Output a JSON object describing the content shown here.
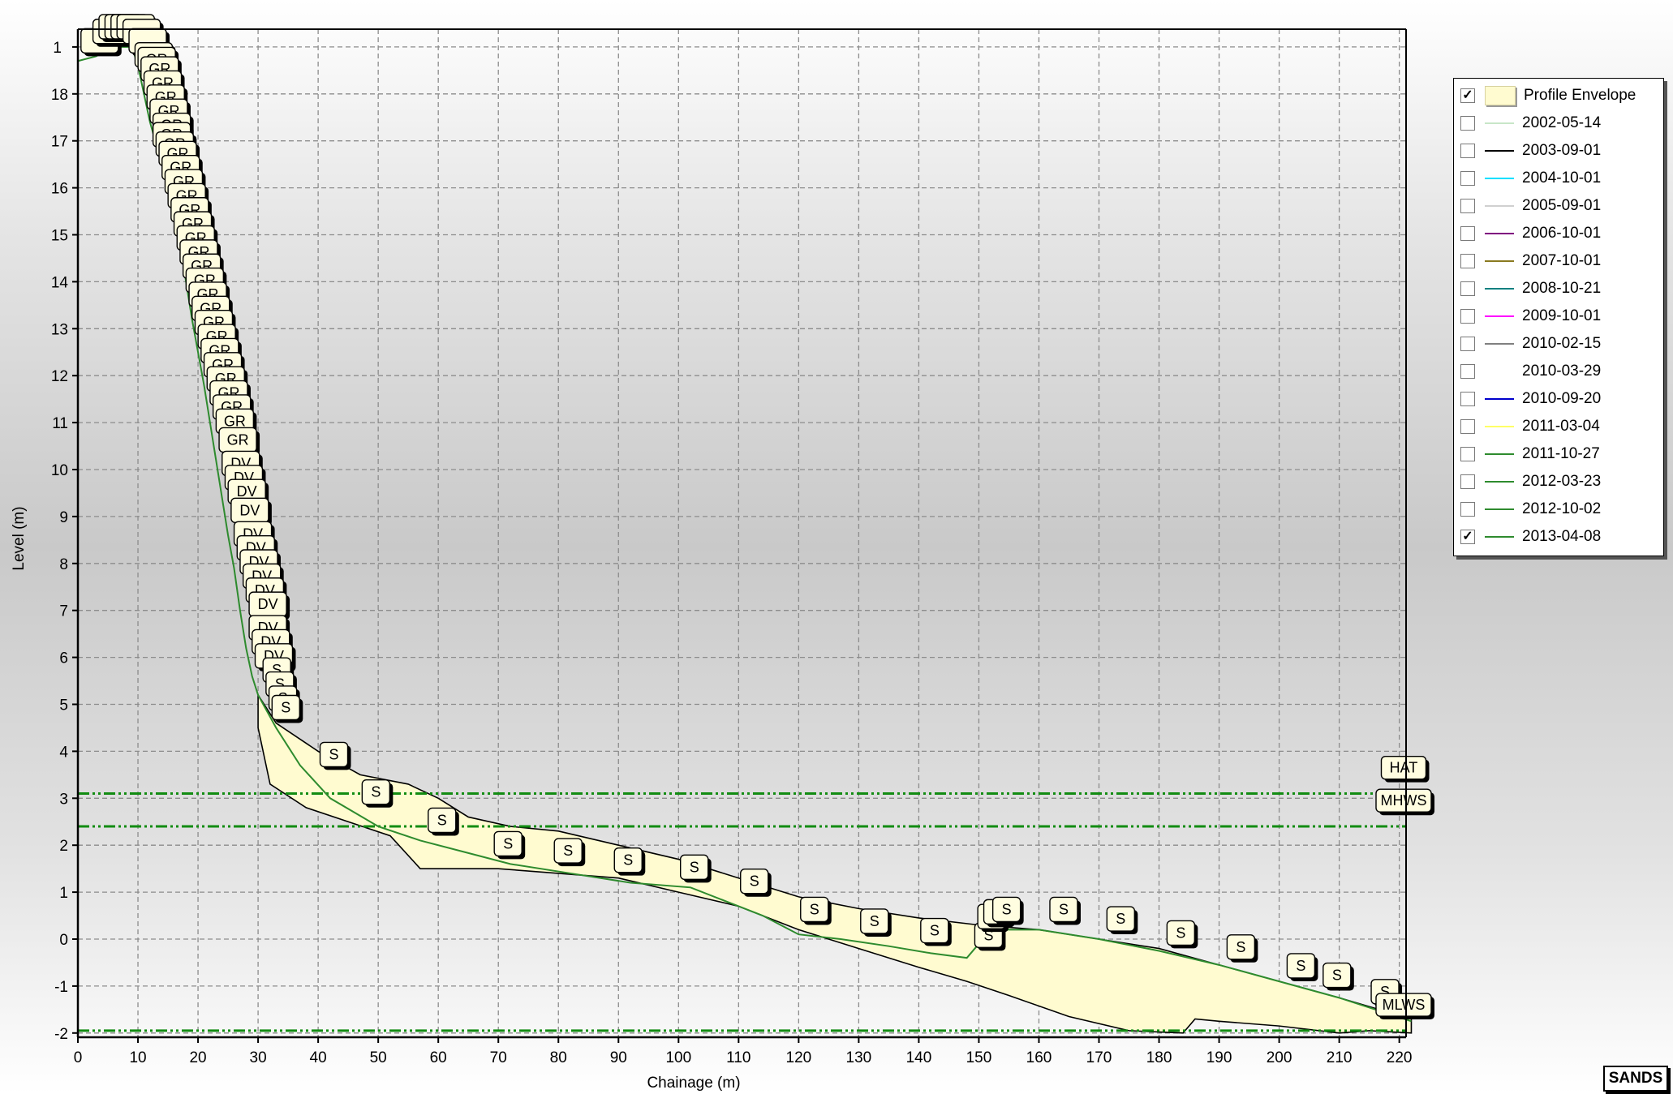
{
  "chart_data": {
    "type": "line",
    "xlabel": "Chainage (m)",
    "ylabel": "Level (m)",
    "xlim": [
      0,
      223
    ],
    "ylim": [
      -2.2,
      19.5
    ],
    "x_ticks": [
      0,
      10,
      20,
      30,
      40,
      50,
      60,
      70,
      80,
      90,
      100,
      110,
      120,
      130,
      140,
      150,
      160,
      170,
      180,
      190,
      200,
      210,
      220
    ],
    "y_ticks": [
      -2,
      -1,
      0,
      1,
      2,
      3,
      4,
      5,
      6,
      7,
      8,
      9,
      10,
      11,
      12,
      13,
      14,
      15,
      16,
      17,
      18
    ],
    "y_top_tick_label": "1",
    "grid": true,
    "legend_position": "top-right",
    "envelope": {
      "name": "Profile Envelope",
      "color": "#fffbd0",
      "upper": [
        [
          30,
          5.2
        ],
        [
          33,
          4.6
        ],
        [
          40,
          4.0
        ],
        [
          47,
          3.5
        ],
        [
          55,
          3.3
        ],
        [
          60,
          3.0
        ],
        [
          65,
          2.6
        ],
        [
          72,
          2.4
        ],
        [
          80,
          2.3
        ],
        [
          90,
          2.0
        ],
        [
          100,
          1.7
        ],
        [
          110,
          1.3
        ],
        [
          120,
          0.9
        ],
        [
          130,
          0.65
        ],
        [
          140,
          0.45
        ],
        [
          150,
          0.3
        ],
        [
          160,
          0.2
        ],
        [
          170,
          0.0
        ],
        [
          180,
          -0.2
        ],
        [
          190,
          -0.55
        ],
        [
          200,
          -0.9
        ],
        [
          210,
          -1.25
        ],
        [
          222,
          -1.7
        ]
      ],
      "lower": [
        [
          222,
          -2.0
        ],
        [
          215,
          -1.95
        ],
        [
          210,
          -2.0
        ],
        [
          200,
          -1.85
        ],
        [
          190,
          -1.75
        ],
        [
          186,
          -1.7
        ],
        [
          184,
          -2.0
        ],
        [
          175,
          -1.95
        ],
        [
          165,
          -1.65
        ],
        [
          155,
          -1.2
        ],
        [
          148,
          -0.9
        ],
        [
          140,
          -0.6
        ],
        [
          130,
          -0.2
        ],
        [
          120,
          0.2
        ],
        [
          110,
          0.7
        ],
        [
          100,
          1.0
        ],
        [
          90,
          1.3
        ],
        [
          80,
          1.4
        ],
        [
          70,
          1.5
        ],
        [
          62,
          1.5
        ],
        [
          57,
          1.5
        ],
        [
          52,
          2.2
        ],
        [
          45,
          2.5
        ],
        [
          38,
          2.8
        ],
        [
          32,
          3.3
        ],
        [
          30,
          4.5
        ]
      ]
    },
    "series": [
      {
        "name": "2002-05-14",
        "color": "#c8e6c8",
        "checked": false
      },
      {
        "name": "2003-09-01",
        "color": "#000000",
        "checked": false
      },
      {
        "name": "2004-10-01",
        "color": "#00e0ff",
        "checked": false
      },
      {
        "name": "2005-09-01",
        "color": "#d0d0d0",
        "checked": false
      },
      {
        "name": "2006-10-01",
        "color": "#800080",
        "checked": false
      },
      {
        "name": "2007-10-01",
        "color": "#8a7a20",
        "checked": false
      },
      {
        "name": "2008-10-21",
        "color": "#008080",
        "checked": false
      },
      {
        "name": "2009-10-01",
        "color": "#ff00ff",
        "checked": false
      },
      {
        "name": "2010-02-15",
        "color": "#808080",
        "checked": false
      },
      {
        "name": "2010-03-29",
        "color": "#ffffff",
        "checked": false
      },
      {
        "name": "2010-09-20",
        "color": "#0000cc",
        "checked": false
      },
      {
        "name": "2011-03-04",
        "color": "#ffff66",
        "checked": false
      },
      {
        "name": "2011-10-27",
        "color": "#2e8b2e",
        "checked": false
      },
      {
        "name": "2012-03-23",
        "color": "#2e8b2e",
        "checked": false
      },
      {
        "name": "2012-10-02",
        "color": "#2e8b2e",
        "checked": false
      },
      {
        "name": "2013-04-08",
        "color": "#2e8b2e",
        "checked": true,
        "points": [
          [
            0,
            18.7
          ],
          [
            3,
            18.8
          ],
          [
            6,
            19.0
          ],
          [
            9,
            19.0
          ],
          [
            10,
            18.6
          ],
          [
            11,
            18.0
          ],
          [
            12,
            17.4
          ],
          [
            14,
            16.5
          ],
          [
            16,
            15.6
          ],
          [
            17,
            14.8
          ],
          [
            18,
            14.0
          ],
          [
            19,
            13.2
          ],
          [
            20,
            12.5
          ],
          [
            21,
            11.8
          ],
          [
            22,
            11.0
          ],
          [
            23,
            10.2
          ],
          [
            24,
            9.4
          ],
          [
            25,
            8.6
          ],
          [
            26,
            7.9
          ],
          [
            27,
            7.0
          ],
          [
            28,
            6.2
          ],
          [
            29,
            5.6
          ],
          [
            30,
            5.2
          ],
          [
            33,
            4.5
          ],
          [
            37,
            3.7
          ],
          [
            42,
            3.0
          ],
          [
            50,
            2.4
          ],
          [
            57,
            2.1
          ],
          [
            63,
            1.9
          ],
          [
            72,
            1.6
          ],
          [
            82,
            1.4
          ],
          [
            92,
            1.2
          ],
          [
            102,
            1.1
          ],
          [
            108,
            0.8
          ],
          [
            114,
            0.5
          ],
          [
            120,
            0.1
          ],
          [
            127,
            0.0
          ],
          [
            135,
            -0.15
          ],
          [
            142,
            -0.3
          ],
          [
            148,
            -0.4
          ],
          [
            152,
            0.2
          ],
          [
            160,
            0.2
          ],
          [
            170,
            0.0
          ],
          [
            180,
            -0.25
          ],
          [
            190,
            -0.55
          ],
          [
            200,
            -0.9
          ],
          [
            210,
            -1.25
          ],
          [
            216,
            -1.5
          ],
          [
            222,
            -1.75
          ]
        ]
      }
    ],
    "codes": [
      {
        "x": 2,
        "y": 19.2,
        "t": ""
      },
      {
        "x": 4,
        "y": 19.4,
        "t": ""
      },
      {
        "x": 5,
        "y": 19.5,
        "t": ""
      },
      {
        "x": 6,
        "y": 19.5,
        "t": ""
      },
      {
        "x": 7,
        "y": 19.5,
        "t": ""
      },
      {
        "x": 8,
        "y": 19.5,
        "t": ""
      },
      {
        "x": 9,
        "y": 19.4,
        "t": ""
      },
      {
        "x": 10,
        "y": 19.2,
        "t": ""
      },
      {
        "x": 11,
        "y": 18.9,
        "t": ""
      },
      {
        "x": 11.5,
        "y": 18.8,
        "t": "GR"
      },
      {
        "x": 12,
        "y": 18.6,
        "t": "GR"
      },
      {
        "x": 12.5,
        "y": 18.3,
        "t": "GR"
      },
      {
        "x": 13,
        "y": 18.0,
        "t": "GR"
      },
      {
        "x": 13.5,
        "y": 17.7,
        "t": "GR"
      },
      {
        "x": 14,
        "y": 17.4,
        "t": "GR"
      },
      {
        "x": 14,
        "y": 17.2,
        "t": "GR"
      },
      {
        "x": 14.5,
        "y": 17.0,
        "t": "GR"
      },
      {
        "x": 15,
        "y": 16.8,
        "t": "GR"
      },
      {
        "x": 15.5,
        "y": 16.5,
        "t": "GR"
      },
      {
        "x": 16,
        "y": 16.2,
        "t": "GR"
      },
      {
        "x": 16.5,
        "y": 15.9,
        "t": "GR"
      },
      {
        "x": 17,
        "y": 15.6,
        "t": "GR"
      },
      {
        "x": 17.5,
        "y": 15.3,
        "t": "GR"
      },
      {
        "x": 18,
        "y": 15.0,
        "t": "GR"
      },
      {
        "x": 18.5,
        "y": 14.7,
        "t": "GR"
      },
      {
        "x": 19,
        "y": 14.4,
        "t": "GR"
      },
      {
        "x": 19.5,
        "y": 14.1,
        "t": "GR"
      },
      {
        "x": 20,
        "y": 13.8,
        "t": "GR"
      },
      {
        "x": 20.5,
        "y": 13.5,
        "t": "GR"
      },
      {
        "x": 21,
        "y": 13.2,
        "t": "GR"
      },
      {
        "x": 21.5,
        "y": 12.9,
        "t": "GR"
      },
      {
        "x": 22,
        "y": 12.6,
        "t": "GR"
      },
      {
        "x": 22.5,
        "y": 12.3,
        "t": "GR"
      },
      {
        "x": 23,
        "y": 12.0,
        "t": "GR"
      },
      {
        "x": 23.5,
        "y": 11.7,
        "t": "GR"
      },
      {
        "x": 24,
        "y": 11.4,
        "t": "GR"
      },
      {
        "x": 24.5,
        "y": 11.1,
        "t": "GR"
      },
      {
        "x": 25,
        "y": 10.7,
        "t": "GR"
      },
      {
        "x": 25.5,
        "y": 10.2,
        "t": "DV"
      },
      {
        "x": 26,
        "y": 9.9,
        "t": "DV"
      },
      {
        "x": 26.5,
        "y": 9.6,
        "t": "DV"
      },
      {
        "x": 27,
        "y": 9.2,
        "t": "DV"
      },
      {
        "x": 27.5,
        "y": 8.7,
        "t": "DV"
      },
      {
        "x": 28,
        "y": 8.4,
        "t": "DV"
      },
      {
        "x": 28.5,
        "y": 8.1,
        "t": "DV"
      },
      {
        "x": 29,
        "y": 7.8,
        "t": "DV"
      },
      {
        "x": 29.5,
        "y": 7.5,
        "t": "DV"
      },
      {
        "x": 30,
        "y": 7.2,
        "t": "DV"
      },
      {
        "x": 30,
        "y": 6.7,
        "t": "DV"
      },
      {
        "x": 30.5,
        "y": 6.4,
        "t": "DV"
      },
      {
        "x": 31,
        "y": 6.1,
        "t": "DV"
      },
      {
        "x": 31.5,
        "y": 5.8,
        "t": "S"
      },
      {
        "x": 32,
        "y": 5.5,
        "t": "S"
      },
      {
        "x": 32.5,
        "y": 5.2,
        "t": "S"
      },
      {
        "x": 33,
        "y": 5.0,
        "t": "S"
      },
      {
        "x": 41,
        "y": 4.0,
        "t": "S"
      },
      {
        "x": 48,
        "y": 3.2,
        "t": "S"
      },
      {
        "x": 59,
        "y": 2.6,
        "t": "S"
      },
      {
        "x": 70,
        "y": 2.1,
        "t": "S"
      },
      {
        "x": 80,
        "y": 1.95,
        "t": "S"
      },
      {
        "x": 90,
        "y": 1.75,
        "t": "S"
      },
      {
        "x": 101,
        "y": 1.6,
        "t": "S"
      },
      {
        "x": 111,
        "y": 1.3,
        "t": "S"
      },
      {
        "x": 121,
        "y": 0.7,
        "t": "S"
      },
      {
        "x": 131,
        "y": 0.45,
        "t": "S"
      },
      {
        "x": 141,
        "y": 0.25,
        "t": "S"
      },
      {
        "x": 150,
        "y": 0.15,
        "t": "S"
      },
      {
        "x": 150.5,
        "y": 0.55,
        "t": "S"
      },
      {
        "x": 151.5,
        "y": 0.65,
        "t": "S"
      },
      {
        "x": 153,
        "y": 0.7,
        "t": "S"
      },
      {
        "x": 162.5,
        "y": 0.7,
        "t": "S"
      },
      {
        "x": 172,
        "y": 0.5,
        "t": "S"
      },
      {
        "x": 182,
        "y": 0.2,
        "t": "S"
      },
      {
        "x": 192,
        "y": -0.1,
        "t": "S"
      },
      {
        "x": 202,
        "y": -0.5,
        "t": "S"
      },
      {
        "x": 208,
        "y": -0.7,
        "t": "S"
      },
      {
        "x": 216,
        "y": -1.05,
        "t": "S"
      }
    ],
    "tide_levels": [
      {
        "name": "HAT",
        "level": 3.1,
        "label_y": 3.65,
        "draw_line": false
      },
      {
        "name": "MHWS",
        "level": 3.1,
        "label_y": 2.95,
        "draw_line": true
      },
      {
        "name": "",
        "level": 2.4,
        "draw_line": true
      },
      {
        "name": "MLWS",
        "level": -1.95,
        "label_y": -1.4,
        "draw_line": true
      }
    ],
    "tide_line_color": "#128c12"
  },
  "logo_text": "SANDS"
}
